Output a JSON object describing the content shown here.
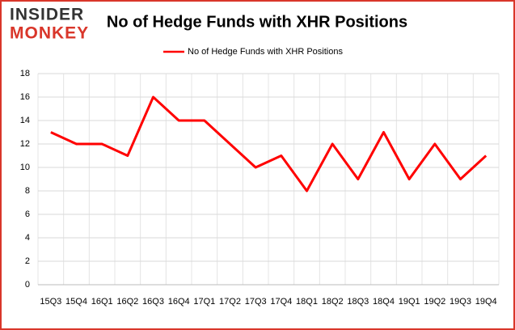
{
  "chart_data": {
    "type": "line",
    "brand": [
      "INSIDER",
      "MONKEY"
    ],
    "title": "No of Hedge Funds with XHR Positions",
    "categories": [
      "15Q3",
      "15Q4",
      "16Q1",
      "16Q2",
      "16Q3",
      "16Q4",
      "17Q1",
      "17Q2",
      "17Q3",
      "17Q4",
      "18Q1",
      "18Q2",
      "18Q3",
      "18Q4",
      "19Q1",
      "19Q2",
      "19Q3",
      "19Q4"
    ],
    "series": [
      {
        "name": "No of Hedge Funds with XHR Positions",
        "color": "#ff0000",
        "values": [
          13,
          12,
          12,
          11,
          16,
          14,
          14,
          12,
          10,
          11,
          8,
          12,
          9,
          13,
          9,
          12,
          9,
          11
        ]
      }
    ],
    "ylim": [
      0,
      18
    ],
    "yticks": [
      0,
      2,
      4,
      6,
      8,
      10,
      12,
      14,
      16,
      18
    ],
    "grid": true,
    "legend": "top"
  }
}
